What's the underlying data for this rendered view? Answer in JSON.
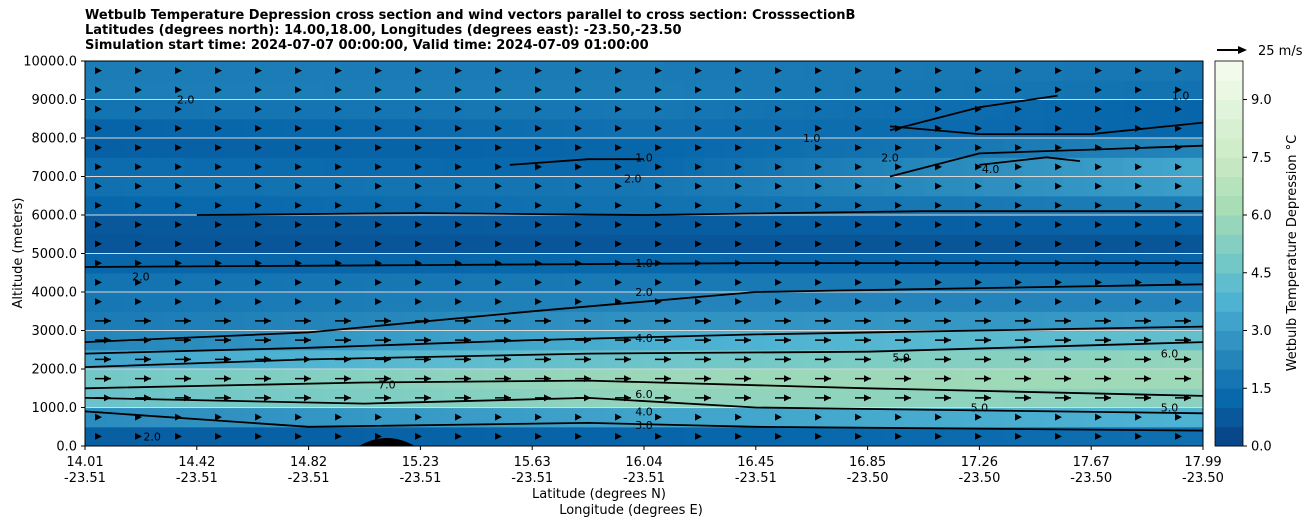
{
  "chart_data": {
    "type": "heatmap",
    "title_lines": [
      "Wetbulb Temperature Depression cross section and wind vectors parallel to cross section: CrosssectionB",
      "Latitudes (degrees north): 14.00,18.00, Longitudes (degrees east): -23.50,-23.50",
      "Simulation start time: 2024-07-07 00:00:00, Valid time: 2024-07-09 01:00:00"
    ],
    "xlabel": "Latitude (degrees N)",
    "xlabel2": "Longitude (degrees E)",
    "ylabel": "Altitude (meters)",
    "ylim": [
      0,
      10000
    ],
    "x_ticks": [
      {
        "lat": "14.01",
        "lon": "-23.51",
        "pos": 0.0
      },
      {
        "lat": "14.42",
        "lon": "-23.51",
        "pos": 0.1
      },
      {
        "lat": "14.82",
        "lon": "-23.51",
        "pos": 0.2
      },
      {
        "lat": "15.23",
        "lon": "-23.51",
        "pos": 0.3
      },
      {
        "lat": "15.63",
        "lon": "-23.51",
        "pos": 0.4
      },
      {
        "lat": "16.04",
        "lon": "-23.51",
        "pos": 0.5
      },
      {
        "lat": "16.45",
        "lon": "-23.51",
        "pos": 0.6
      },
      {
        "lat": "16.85",
        "lon": "-23.50",
        "pos": 0.7
      },
      {
        "lat": "17.26",
        "lon": "-23.50",
        "pos": 0.8
      },
      {
        "lat": "17.67",
        "lon": "-23.50",
        "pos": 0.9
      },
      {
        "lat": "17.99",
        "lon": "-23.50",
        "pos": 1.0
      }
    ],
    "y_ticks": [
      "0.0",
      "1000.0",
      "2000.0",
      "3000.0",
      "4000.0",
      "5000.0",
      "6000.0",
      "7000.0",
      "8000.0",
      "9000.0",
      "10000.0"
    ],
    "y_tick_values": [
      0,
      1000,
      2000,
      3000,
      4000,
      5000,
      6000,
      7000,
      8000,
      9000,
      10000
    ],
    "colorbar": {
      "label": "Wetbulb Temperature Depression °C",
      "range": [
        0,
        10
      ],
      "tick_labels": [
        "0.0",
        "1.5",
        "3.0",
        "4.5",
        "6.0",
        "7.5",
        "9.0"
      ],
      "tick_values": [
        0,
        1.5,
        3.0,
        4.5,
        6.0,
        7.5,
        9.0
      ],
      "colors": [
        "#084081",
        "#0868ac",
        "#2b8cbe",
        "#4eb3d3",
        "#7bccc4",
        "#a8ddb5",
        "#ccebc5",
        "#e0f3db",
        "#f7fcf0"
      ]
    },
    "wind_key": "25 m/s",
    "levels_profile": {
      "heights": [
        0,
        500,
        1000,
        1500,
        2000,
        2500,
        3000,
        3500,
        4000,
        4500,
        5000,
        5500,
        6000,
        6500,
        7000,
        7500,
        8000,
        8500,
        9000,
        9500,
        10000
      ],
      "depression_left": [
        0.4,
        1.5,
        3.5,
        5.5,
        4.0,
        2.5,
        2.0,
        1.8,
        1.7,
        1.6,
        0.8,
        0.6,
        0.9,
        1.5,
        1.6,
        1.2,
        0.8,
        1.4,
        1.9,
        2.1,
        1.8
      ],
      "depression_mid": [
        0.3,
        2.0,
        4.5,
        6.8,
        5.0,
        4.2,
        3.0,
        2.4,
        2.0,
        1.7,
        0.8,
        0.6,
        1.2,
        2.0,
        1.5,
        1.0,
        1.4,
        1.7,
        1.9,
        2.0,
        1.8
      ],
      "depression_right": [
        0.5,
        2.5,
        5.0,
        5.8,
        6.2,
        5.2,
        3.5,
        2.4,
        2.0,
        1.6,
        0.7,
        0.6,
        1.6,
        2.4,
        3.8,
        3.0,
        1.5,
        0.9,
        1.4,
        1.8,
        1.7
      ]
    },
    "contours": [
      {
        "label": "1.0"
      },
      {
        "label": "2.0"
      },
      {
        "label": "3.0"
      },
      {
        "label": "4.0"
      },
      {
        "label": "5.0"
      },
      {
        "label": "6.0"
      },
      {
        "label": "7.0"
      }
    ]
  }
}
